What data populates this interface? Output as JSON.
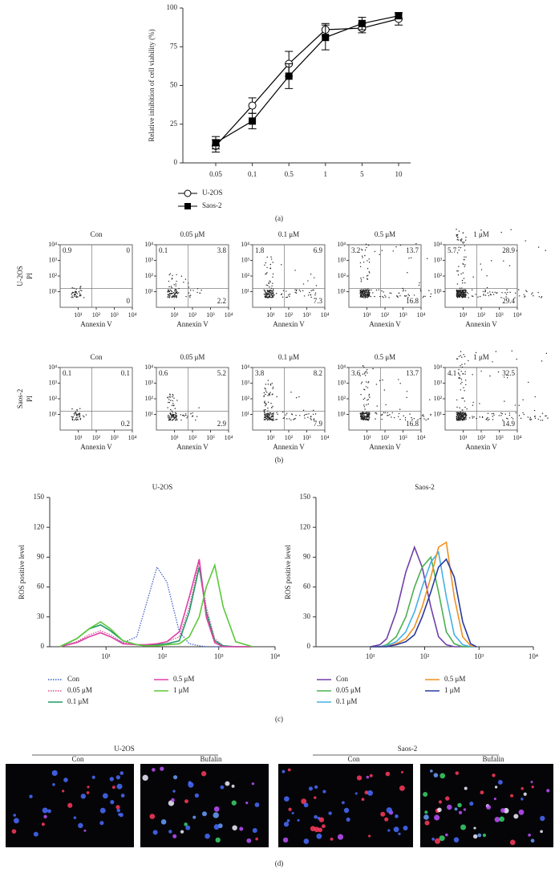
{
  "chart_data": [
    {
      "type": "line",
      "caption": "(a)",
      "y_label": "Relative inhibition of cell viability (%)",
      "categories": [
        "0.05",
        "0.1",
        "0.5",
        "1",
        "5",
        "10"
      ],
      "ylim": [
        0,
        100
      ],
      "yticks": [
        0,
        25,
        50,
        75,
        100
      ],
      "series": [
        {
          "name": "U-2OS",
          "color": "#000000",
          "marker": "circle-open",
          "values": [
            11,
            37,
            64,
            86,
            87,
            93
          ],
          "errors": [
            4,
            5,
            8,
            4,
            3,
            4
          ]
        },
        {
          "name": "Saos-2",
          "color": "#000000",
          "marker": "square",
          "values": [
            13,
            27,
            56,
            81,
            90,
            95
          ],
          "errors": [
            4,
            5,
            8,
            8,
            4,
            2
          ]
        }
      ]
    },
    {
      "type": "line",
      "title": "U-2OS",
      "caption": "(c)",
      "y_label": "ROS positive level",
      "log_x": true,
      "x": [
        1.5,
        3,
        5,
        8,
        12,
        20,
        35,
        50,
        80,
        120,
        200,
        300,
        450,
        600,
        850,
        1200,
        2000,
        4000
      ],
      "xlim": [
        1,
        10000
      ],
      "xticks": [
        {
          "value": 10,
          "label": "10¹"
        },
        {
          "value": 100,
          "label": "10²"
        },
        {
          "value": 1000,
          "label": "10³"
        },
        {
          "value": 10000,
          "label": "10⁴"
        }
      ],
      "ylim": [
        0,
        150
      ],
      "yticks": [
        0,
        30,
        60,
        90,
        120,
        150
      ],
      "series": [
        {
          "name": "Con",
          "color": "#3b5bc4",
          "line_style": "dotted",
          "values": [
            0,
            5,
            10,
            14,
            10,
            4,
            10,
            40,
            80,
            65,
            15,
            3,
            1,
            0,
            0,
            0,
            0,
            0
          ]
        },
        {
          "name": "0.05 μM",
          "color": "#d94f8a",
          "line_style": "dotted",
          "values": [
            0,
            5,
            12,
            16,
            12,
            4,
            2,
            2,
            3,
            5,
            10,
            40,
            85,
            40,
            8,
            1,
            0,
            0
          ]
        },
        {
          "name": "0.1 μM",
          "color": "#1f9a6a",
          "line_style": "solid",
          "values": [
            0,
            8,
            18,
            22,
            16,
            6,
            2,
            1,
            2,
            3,
            6,
            35,
            80,
            35,
            6,
            1,
            0,
            0
          ]
        },
        {
          "name": "0.5 μM",
          "color": "#e040a8",
          "line_style": "solid",
          "values": [
            0,
            4,
            10,
            14,
            10,
            3,
            2,
            2,
            3,
            5,
            15,
            50,
            88,
            30,
            4,
            0,
            0,
            0
          ]
        },
        {
          "name": "1 μM",
          "color": "#5cc83a",
          "line_style": "solid",
          "values": [
            0,
            8,
            18,
            25,
            18,
            6,
            2,
            1,
            1,
            2,
            3,
            10,
            30,
            60,
            82,
            40,
            5,
            0
          ]
        }
      ]
    },
    {
      "type": "line",
      "title": "Saos-2",
      "y_label": "ROS positive level",
      "log_x": true,
      "x": [
        10,
        15,
        20,
        30,
        45,
        65,
        90,
        130,
        180,
        250,
        350,
        500,
        700,
        900
      ],
      "xlim": [
        1,
        10000
      ],
      "xticks": [
        {
          "value": 10,
          "label": "10¹"
        },
        {
          "value": 100,
          "label": "10²"
        },
        {
          "value": 1000,
          "label": "10³"
        },
        {
          "value": 10000,
          "label": "10⁴"
        }
      ],
      "ylim": [
        0,
        150
      ],
      "yticks": [
        0,
        30,
        60,
        90,
        120,
        150
      ],
      "series": [
        {
          "name": "Con",
          "color": "#7040a8",
          "line_style": "solid",
          "values": [
            0,
            2,
            8,
            35,
            75,
            100,
            80,
            40,
            10,
            2,
            0,
            0,
            0,
            0
          ]
        },
        {
          "name": "0.05 μM",
          "color": "#4caf50",
          "line_style": "solid",
          "values": [
            0,
            0,
            2,
            10,
            30,
            60,
            80,
            90,
            55,
            15,
            3,
            0,
            0,
            0
          ]
        },
        {
          "name": "0.1 μM",
          "color": "#45b0e6",
          "line_style": "solid",
          "values": [
            0,
            0,
            1,
            5,
            15,
            35,
            60,
            85,
            95,
            50,
            12,
            2,
            0,
            0
          ]
        },
        {
          "name": "0.5 μM",
          "color": "#f0901e",
          "line_style": "solid",
          "values": [
            0,
            0,
            0,
            3,
            8,
            20,
            40,
            70,
            100,
            105,
            50,
            10,
            1,
            0
          ]
        },
        {
          "name": "1 μM",
          "color": "#2a3a9e",
          "line_style": "solid",
          "values": [
            0,
            0,
            0,
            2,
            5,
            12,
            30,
            55,
            80,
            88,
            70,
            25,
            3,
            0
          ]
        }
      ]
    }
  ],
  "flow_cytometry": {
    "caption": "(b)",
    "x_label": "Annexin V",
    "y_label": "PI",
    "ticks": [
      {
        "value": 10,
        "label": "10¹"
      },
      {
        "value": 100,
        "label": "10²"
      },
      {
        "value": 1000,
        "label": "10³"
      },
      {
        "value": 10000,
        "label": "10⁴"
      }
    ],
    "rows": [
      {
        "name": "U-2OS",
        "panels": [
          {
            "title": "Con",
            "quadrants": [
              0.9,
              0,
              0
            ]
          },
          {
            "title": "0.05 μM",
            "quadrants": [
              0.1,
              3.8,
              2.2
            ]
          },
          {
            "title": "0.1 μM",
            "quadrants": [
              1.8,
              6.9,
              7.3
            ]
          },
          {
            "title": "0.5 μM",
            "quadrants": [
              3.2,
              13.7,
              16.8
            ]
          },
          {
            "title": "1 μM",
            "quadrants": [
              5.7,
              28.9,
              29.4
            ]
          }
        ]
      },
      {
        "name": "Saos-2",
        "panels": [
          {
            "title": "Con",
            "quadrants": [
              0.1,
              0.1,
              0.2
            ]
          },
          {
            "title": "0.05 μM",
            "quadrants": [
              0.6,
              5.2,
              2.9
            ]
          },
          {
            "title": "0.1 μM",
            "quadrants": [
              3.8,
              8.2,
              7.9
            ]
          },
          {
            "title": "0.5 μM",
            "quadrants": [
              3.6,
              13.7,
              16.8
            ]
          },
          {
            "title": "1 μM",
            "quadrants": [
              4.1,
              32.5,
              14.9
            ]
          }
        ]
      }
    ]
  },
  "microscopy": {
    "caption": "(d)",
    "groups": [
      {
        "title": "U-2OS",
        "images": [
          "Con",
          "Bufalin"
        ]
      },
      {
        "title": "Saos-2",
        "images": [
          "Con",
          "Bufalin"
        ]
      }
    ]
  }
}
